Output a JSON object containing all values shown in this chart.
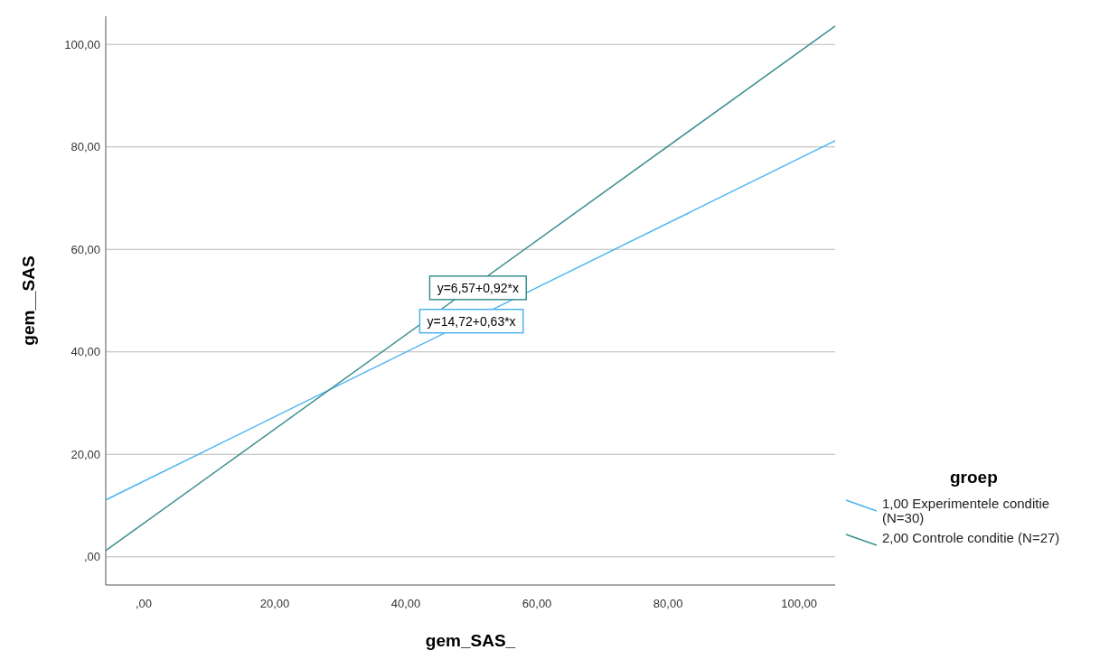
{
  "chart_data": {
    "type": "line",
    "xlabel": "gem_SAS_",
    "ylabel": "gem__SAS",
    "legend_title": "groep",
    "legend": "right",
    "grid": "y",
    "xlim": [
      -5.8,
      105.5
    ],
    "ylim": [
      -5.5,
      105.5
    ],
    "xticks": [
      {
        "value": 0,
        "label": ",00"
      },
      {
        "value": 20,
        "label": "20,00"
      },
      {
        "value": 40,
        "label": "40,00"
      },
      {
        "value": 60,
        "label": "60,00"
      },
      {
        "value": 80,
        "label": "80,00"
      },
      {
        "value": 100,
        "label": "100,00"
      }
    ],
    "yticks": [
      {
        "value": 0,
        "label": ",00"
      },
      {
        "value": 20,
        "label": "20,00"
      },
      {
        "value": 40,
        "label": "40,00"
      },
      {
        "value": 60,
        "label": "60,00"
      },
      {
        "value": 80,
        "label": "80,00"
      },
      {
        "value": 100,
        "label": "100,00"
      }
    ],
    "x": [
      -5.8,
      105.5
    ],
    "series": [
      {
        "name": "1,00 Experimentele conditie (N=30)",
        "color": "#4cb4f0",
        "values": [
          11.1,
          81.2
        ]
      },
      {
        "name": "2,00 Controle conditie (N=27)",
        "color": "#3d8f8f",
        "values": [
          1.2,
          103.6
        ]
      }
    ],
    "annotations": [
      {
        "text": "y=14,72+0,63*x",
        "x": 50,
        "y": 46
      },
      {
        "text": "y=6,57+0,92*x",
        "x": 51,
        "y": 52.5
      }
    ]
  }
}
